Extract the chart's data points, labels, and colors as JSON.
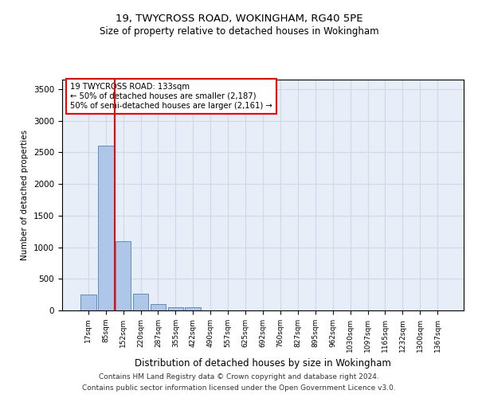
{
  "title1": "19, TWYCROSS ROAD, WOKINGHAM, RG40 5PE",
  "title2": "Size of property relative to detached houses in Wokingham",
  "xlabel": "Distribution of detached houses by size in Wokingham",
  "ylabel": "Number of detached properties",
  "bar_categories": [
    "17sqm",
    "85sqm",
    "152sqm",
    "220sqm",
    "287sqm",
    "355sqm",
    "422sqm",
    "490sqm",
    "557sqm",
    "625sqm",
    "692sqm",
    "760sqm",
    "827sqm",
    "895sqm",
    "962sqm",
    "1030sqm",
    "1097sqm",
    "1165sqm",
    "1232sqm",
    "1300sqm",
    "1367sqm"
  ],
  "bar_values": [
    250,
    2600,
    1100,
    260,
    100,
    50,
    50,
    0,
    0,
    0,
    0,
    0,
    0,
    0,
    0,
    0,
    0,
    0,
    0,
    0,
    0
  ],
  "bar_color": "#aec6e8",
  "bar_edge_color": "#5a8fc0",
  "vline_x": 1.5,
  "vline_color": "red",
  "annotation_text": "19 TWYCROSS ROAD: 133sqm\n← 50% of detached houses are smaller (2,187)\n50% of semi-detached houses are larger (2,161) →",
  "ylim": [
    0,
    3650
  ],
  "yticks": [
    0,
    500,
    1000,
    1500,
    2000,
    2500,
    3000,
    3500
  ],
  "grid_color": "#d0d8e8",
  "background_color": "#e8eef8",
  "footnote1": "Contains HM Land Registry data © Crown copyright and database right 2024.",
  "footnote2": "Contains public sector information licensed under the Open Government Licence v3.0."
}
